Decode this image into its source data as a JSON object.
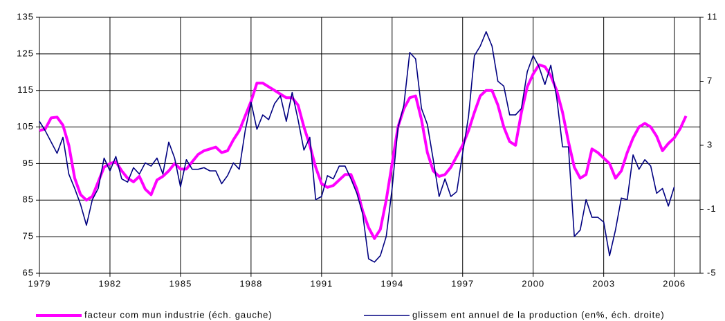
{
  "chart_data": {
    "type": "line",
    "x": [
      1979,
      1979.25,
      1979.5,
      1979.75,
      1980,
      1980.25,
      1980.5,
      1980.75,
      1981,
      1981.25,
      1981.5,
      1981.75,
      1982,
      1982.25,
      1982.5,
      1982.75,
      1983,
      1983.25,
      1983.5,
      1983.75,
      1984,
      1984.25,
      1984.5,
      1984.75,
      1985,
      1985.25,
      1985.5,
      1985.75,
      1986,
      1986.25,
      1986.5,
      1986.75,
      1987,
      1987.25,
      1987.5,
      1987.75,
      1988,
      1988.25,
      1988.5,
      1988.75,
      1989,
      1989.25,
      1989.5,
      1989.75,
      1990,
      1990.25,
      1990.5,
      1990.75,
      1991,
      1991.25,
      1991.5,
      1991.75,
      1992,
      1992.25,
      1992.5,
      1992.75,
      1993,
      1993.25,
      1993.5,
      1993.75,
      1994,
      1994.25,
      1994.5,
      1994.75,
      1995,
      1995.25,
      1995.5,
      1995.75,
      1996,
      1996.25,
      1996.5,
      1996.75,
      1997,
      1997.25,
      1997.5,
      1997.75,
      1998,
      1998.25,
      1998.5,
      1998.75,
      1999,
      1999.25,
      1999.5,
      1999.75,
      2000,
      2000.25,
      2000.5,
      2000.75,
      2001,
      2001.25,
      2001.5,
      2001.75,
      2002,
      2002.25,
      2002.5,
      2002.75,
      2003,
      2003.25,
      2003.5,
      2003.75,
      2004,
      2004.25,
      2004.5,
      2004.75,
      2005,
      2005.25,
      2005.5,
      2005.75,
      2006,
      2006.25,
      2006.5
    ],
    "series": [
      {
        "name": "facteur com mun industrie (éch. gauche)",
        "color": "#ff00ff",
        "values": [
          104,
          104.5,
          107.5,
          107.7,
          105.5,
          100,
          91,
          86.5,
          85,
          86,
          90,
          94,
          95,
          95.5,
          93,
          91,
          90,
          91.5,
          88,
          86.5,
          90.5,
          91.5,
          93,
          95,
          93.5,
          93.5,
          95.5,
          97.5,
          98.5,
          99,
          99.5,
          98,
          98.5,
          101.5,
          104,
          108,
          112,
          117,
          117,
          116,
          115,
          114,
          113,
          113,
          111,
          105,
          100,
          94,
          89.5,
          88.5,
          89,
          90.5,
          92,
          92,
          88,
          82,
          77.5,
          74.5,
          77,
          85,
          95,
          105,
          110,
          113,
          113.5,
          107,
          98,
          93,
          91.5,
          92,
          94,
          97,
          100,
          104,
          109,
          113.5,
          115,
          115,
          111,
          105,
          101,
          100,
          109,
          116,
          119.5,
          122,
          121.5,
          119,
          115,
          109,
          101,
          94,
          91,
          92,
          99,
          98,
          96.5,
          95,
          91,
          93,
          98,
          102,
          105,
          106,
          105,
          102.5,
          98.5,
          100.5,
          102,
          104.5,
          108
        ]
      },
      {
        "name": "glissem ent annuel de la production (en%, éch. droite)",
        "color": "#000080",
        "axis": "y2",
        "values": [
          4.5,
          3.9,
          3.2,
          2.5,
          3.5,
          1.2,
          0.3,
          -0.7,
          -2.0,
          -0.4,
          0.3,
          2.2,
          1.4,
          2.3,
          0.9,
          0.7,
          1.6,
          1.2,
          1.9,
          1.7,
          2.2,
          1.2,
          3.2,
          2.2,
          0.4,
          2.1,
          1.5,
          1.5,
          1.6,
          1.4,
          1.4,
          0.6,
          1.1,
          1.9,
          1.5,
          3.9,
          5.7,
          4.0,
          4.9,
          4.6,
          5.6,
          6.1,
          4.5,
          6.3,
          4.6,
          2.7,
          3.5,
          -0.4,
          -0.2,
          1.1,
          0.9,
          1.7,
          1.7,
          0.9,
          0.0,
          -1.3,
          -4.1,
          -4.3,
          -3.9,
          -2.7,
          0.3,
          4.1,
          5.5,
          8.8,
          8.4,
          5.3,
          4.3,
          2.1,
          -0.2,
          0.9,
          -0.2,
          0.1,
          2.5,
          4.8,
          8.6,
          9.2,
          10.1,
          9.2,
          7.0,
          6.7,
          4.9,
          4.9,
          5.3,
          7.6,
          8.6,
          7.9,
          6.8,
          8.0,
          6.0,
          2.9,
          2.9,
          -2.7,
          -2.3,
          -0.4,
          -1.5,
          -1.5,
          -1.8,
          -3.9,
          -2.3,
          -0.3,
          -0.4,
          2.4,
          1.5,
          2.1,
          1.7,
          0.0,
          0.3,
          -0.8,
          0.4,
          null,
          null
        ]
      }
    ],
    "xlim": [
      1979,
      2007.1
    ],
    "xticks": [
      1979,
      1982,
      1985,
      1988,
      1991,
      1994,
      1997,
      2000,
      2003,
      2006
    ],
    "ylim": [
      65,
      135
    ],
    "yticks": [
      65,
      75,
      85,
      95,
      105,
      115,
      125,
      135
    ],
    "y2lim": [
      -5,
      11
    ],
    "y2ticks": [
      -5,
      -1,
      3,
      7,
      11
    ],
    "grid": true,
    "legend": "bottom"
  }
}
